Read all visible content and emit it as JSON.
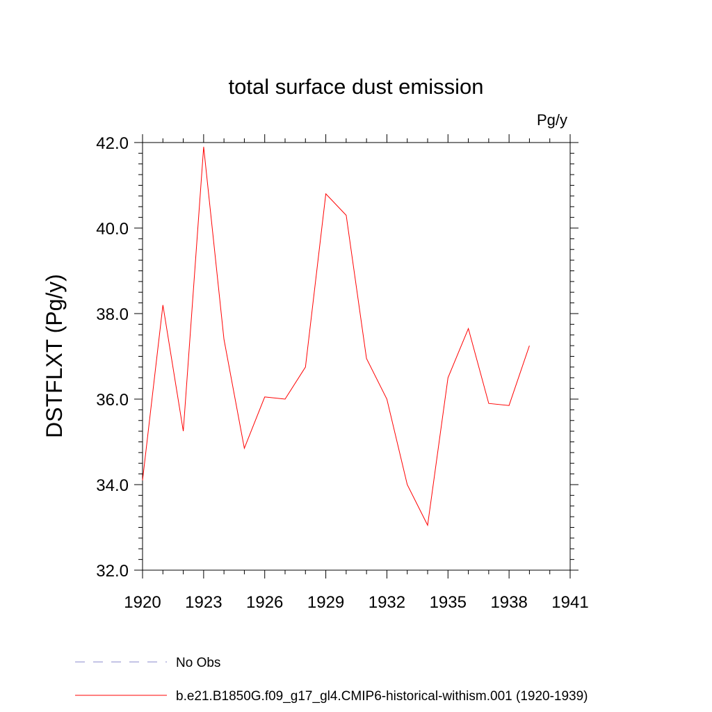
{
  "chart_data": {
    "type": "line",
    "title": "total surface dust emission",
    "units_label": "Pg/y",
    "ylabel": "DSTFLXT  (Pg/y)",
    "xlabel": "",
    "xlim": [
      1920,
      1941
    ],
    "ylim": [
      32.0,
      42.0
    ],
    "x_ticks": [
      1920,
      1923,
      1926,
      1929,
      1932,
      1935,
      1938,
      1941
    ],
    "y_ticks": [
      "32.0",
      "34.0",
      "36.0",
      "38.0",
      "40.0",
      "42.0"
    ],
    "grid": false,
    "legend_position": "bottom-left",
    "series": [
      {
        "name": "b.e21.B1850G.f09_g17_gl4.CMIP6-historical-withism.001 (1920-1939)",
        "color": "#ff0000",
        "style": "solid",
        "x": [
          1920,
          1921,
          1922,
          1923,
          1924,
          1925,
          1926,
          1927,
          1928,
          1929,
          1930,
          1931,
          1932,
          1933,
          1934,
          1935,
          1936,
          1937,
          1938,
          1939
        ],
        "values": [
          34.1,
          38.2,
          35.25,
          41.9,
          37.4,
          34.85,
          36.05,
          36.0,
          36.75,
          40.8,
          40.3,
          36.95,
          36.0,
          34.0,
          33.05,
          36.5,
          37.65,
          35.9,
          35.85,
          37.25
        ]
      }
    ],
    "legend": [
      {
        "label": "No Obs",
        "color": "#8888cc",
        "style": "dashed"
      },
      {
        "label": "b.e21.B1850G.f09_g17_gl4.CMIP6-historical-withism.001 (1920-1939)",
        "color": "#ff0000",
        "style": "solid"
      }
    ]
  }
}
